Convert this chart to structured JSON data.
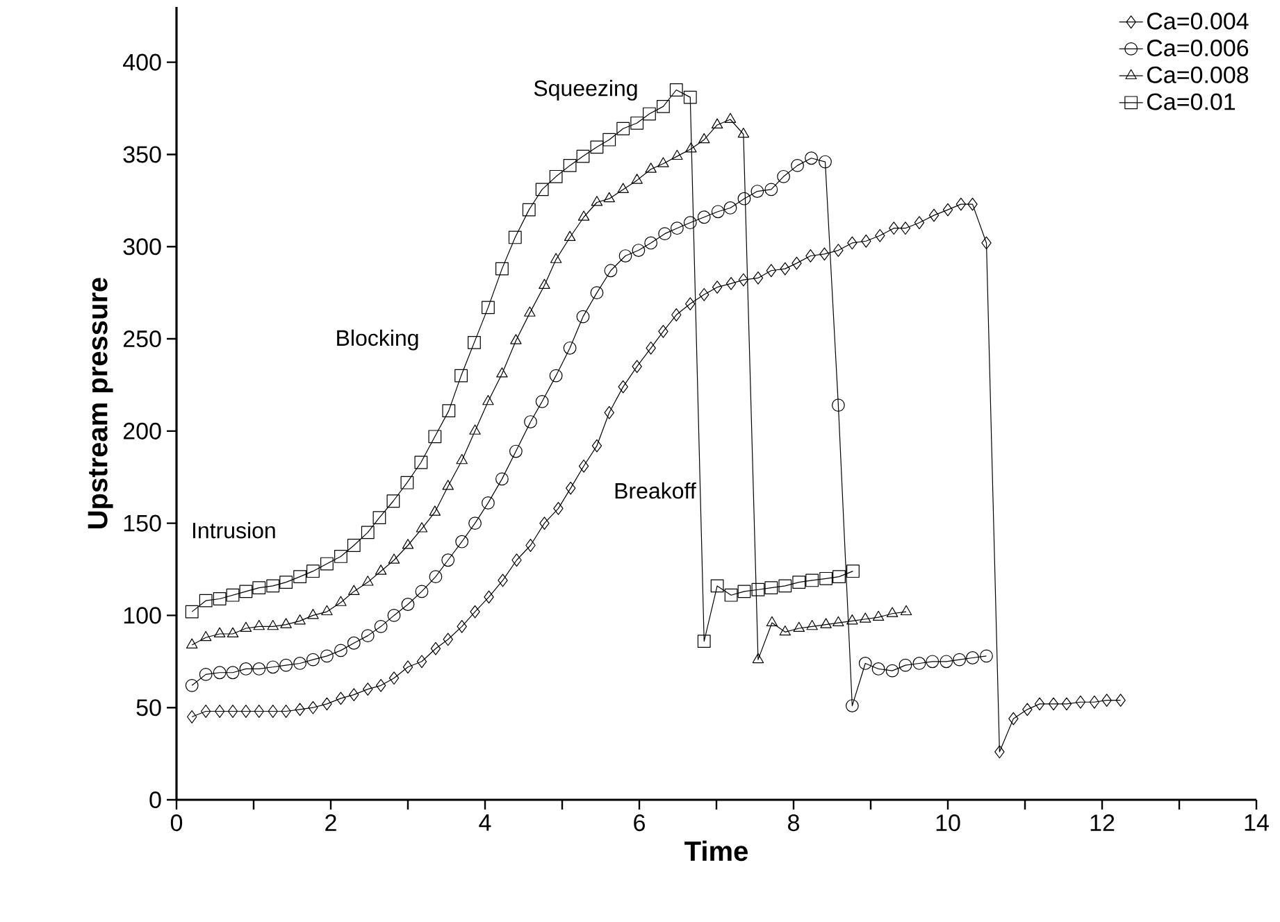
{
  "chart_data": {
    "type": "line",
    "xlabel": "Time",
    "ylabel": "Upstream pressure",
    "xlim": [
      0,
      14
    ],
    "ylim": [
      0,
      430
    ],
    "xticks": [
      0,
      {
        "value": 1,
        "label": null
      },
      2,
      {
        "value": 3,
        "label": null
      },
      4,
      {
        "value": 5,
        "label": null
      },
      6,
      {
        "value": 7,
        "label": null
      },
      8,
      {
        "value": 9,
        "label": null
      },
      10,
      {
        "value": 11,
        "label": null
      },
      12,
      {
        "value": 13,
        "label": null
      },
      14
    ],
    "yticks": [
      0,
      50,
      100,
      150,
      200,
      250,
      300,
      350,
      400
    ],
    "grid": false,
    "legend": "top right",
    "line_style": "solid",
    "annotations": [
      "Intrusion",
      "Blocking",
      "Squeezing",
      "Breakoff"
    ],
    "series": [
      {
        "name": "Ca=0.004",
        "color": "#000000",
        "marker": "diamond",
        "x": [
          0.2,
          0.38,
          0.56,
          0.73,
          0.9,
          1.07,
          1.25,
          1.42,
          1.6,
          1.77,
          1.95,
          2.13,
          2.3,
          2.48,
          2.65,
          2.82,
          3.0,
          3.18,
          3.36,
          3.52,
          3.7,
          3.87,
          4.05,
          4.23,
          4.41,
          4.59,
          4.77,
          4.95,
          5.11,
          5.28,
          5.45,
          5.61,
          5.79,
          5.97,
          6.15,
          6.31,
          6.48,
          6.66,
          6.84,
          7.01,
          7.19,
          7.35,
          7.54,
          7.71,
          7.89,
          8.04,
          8.22,
          8.4,
          8.58,
          8.76,
          8.94,
          9.12,
          9.3,
          9.45,
          9.63,
          9.82,
          10.0,
          10.17,
          10.32,
          10.5,
          10.67,
          10.85,
          11.03,
          11.19,
          11.37,
          11.54,
          11.72,
          11.9,
          12.06,
          12.24
        ],
        "values": [
          45,
          48,
          48,
          48,
          48,
          48,
          48,
          48,
          49,
          50,
          52,
          55,
          57,
          60,
          62,
          66,
          72,
          75,
          82,
          87,
          94,
          102,
          110,
          119,
          130,
          138,
          150,
          158,
          169,
          181,
          192,
          210,
          224,
          235,
          245,
          254,
          263,
          269,
          274,
          278,
          280,
          282,
          283,
          287,
          288,
          291,
          295,
          296,
          298,
          302,
          303,
          306,
          310,
          310,
          313,
          317,
          320,
          323,
          323,
          302,
          26,
          44,
          49,
          52,
          52,
          52,
          53,
          53,
          54,
          54
        ]
      },
      {
        "name": "Ca=0.006",
        "color": "#000000",
        "marker": "circle",
        "x": [
          0.2,
          0.38,
          0.56,
          0.73,
          0.9,
          1.07,
          1.25,
          1.42,
          1.6,
          1.77,
          1.95,
          2.13,
          2.3,
          2.48,
          2.65,
          2.82,
          3.0,
          3.18,
          3.36,
          3.52,
          3.7,
          3.87,
          4.04,
          4.22,
          4.4,
          4.59,
          4.74,
          4.92,
          5.1,
          5.27,
          5.45,
          5.63,
          5.82,
          5.99,
          6.15,
          6.33,
          6.49,
          6.66,
          6.84,
          7.02,
          7.18,
          7.36,
          7.53,
          7.71,
          7.87,
          8.05,
          8.23,
          8.41,
          8.58,
          8.76,
          8.93,
          9.1,
          9.28,
          9.45,
          9.63,
          9.8,
          9.98,
          10.15,
          10.32,
          10.5
        ],
        "values": [
          62,
          68,
          69,
          69,
          71,
          71,
          72,
          73,
          74,
          76,
          78,
          81,
          85,
          89,
          94,
          100,
          106,
          113,
          121,
          130,
          140,
          150,
          161,
          174,
          189,
          205,
          216,
          230,
          245,
          262,
          275,
          287,
          295,
          298,
          302,
          307,
          310,
          313,
          316,
          319,
          321,
          326,
          330,
          331,
          338,
          344,
          348,
          346,
          214,
          51,
          74,
          71,
          70,
          73,
          74,
          75,
          75,
          76,
          77,
          78
        ]
      },
      {
        "name": "Ca=0.008",
        "color": "#000000",
        "marker": "triangle",
        "x": [
          0.2,
          0.38,
          0.56,
          0.73,
          0.9,
          1.07,
          1.25,
          1.42,
          1.6,
          1.77,
          1.95,
          2.13,
          2.3,
          2.48,
          2.65,
          2.82,
          3.0,
          3.18,
          3.35,
          3.52,
          3.7,
          3.87,
          4.04,
          4.22,
          4.4,
          4.58,
          4.77,
          4.92,
          5.1,
          5.28,
          5.45,
          5.61,
          5.79,
          5.97,
          6.15,
          6.31,
          6.49,
          6.67,
          6.84,
          7.01,
          7.18,
          7.35,
          7.54,
          7.72,
          7.89,
          8.07,
          8.24,
          8.42,
          8.58,
          8.76,
          8.93,
          9.1,
          9.28,
          9.46
        ],
        "values": [
          84,
          88,
          90,
          90,
          93,
          94,
          94,
          95,
          97,
          100,
          102,
          107,
          113,
          118,
          124,
          130,
          138,
          147,
          156,
          170,
          184,
          200,
          216,
          231,
          249,
          264,
          279,
          293,
          305,
          316,
          324,
          326,
          331,
          336,
          342,
          345,
          349,
          353,
          358,
          366,
          369,
          361,
          76,
          96,
          91,
          93,
          94,
          95,
          96,
          97,
          98,
          99,
          101,
          102
        ]
      },
      {
        "name": "Ca=0.01",
        "color": "#000000",
        "marker": "square",
        "x": [
          0.2,
          0.38,
          0.56,
          0.73,
          0.9,
          1.07,
          1.25,
          1.42,
          1.6,
          1.77,
          1.95,
          2.13,
          2.3,
          2.48,
          2.63,
          2.81,
          2.99,
          3.17,
          3.35,
          3.53,
          3.69,
          3.86,
          4.04,
          4.22,
          4.39,
          4.57,
          4.74,
          4.92,
          5.1,
          5.27,
          5.45,
          5.61,
          5.79,
          5.97,
          6.13,
          6.31,
          6.48,
          6.66,
          6.84,
          7.01,
          7.19,
          7.36,
          7.54,
          7.71,
          7.89,
          8.07,
          8.24,
          8.42,
          8.59,
          8.77
        ],
        "values": [
          102,
          108,
          109,
          111,
          113,
          115,
          116,
          118,
          121,
          124,
          128,
          132,
          138,
          145,
          153,
          162,
          172,
          183,
          197,
          211,
          230,
          248,
          267,
          288,
          305,
          320,
          331,
          338,
          344,
          349,
          354,
          358,
          364,
          367,
          372,
          376,
          385,
          381,
          86,
          116,
          111,
          113,
          114,
          115,
          116,
          118,
          119,
          120,
          121,
          124
        ]
      }
    ]
  }
}
